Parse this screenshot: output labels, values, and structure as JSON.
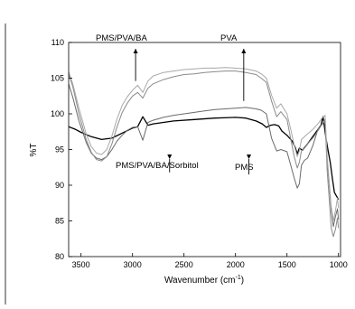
{
  "chart_data": {
    "type": "line",
    "xlabel": "Wavenumber (cm",
    "xlabel_sup": "-1",
    "xlabel_end": ")",
    "ylabel": "%T",
    "xlim": [
      3620,
      980
    ],
    "ylim": [
      80,
      110
    ],
    "x_reversed": true,
    "grid": false,
    "x_ticks": [
      3500,
      3000,
      2500,
      2000,
      1500,
      1000
    ],
    "y_ticks": [
      80,
      85,
      90,
      95,
      100,
      105,
      110
    ],
    "annotations": [
      {
        "text": "PMS/PVA/BA",
        "arrow_x": 2970,
        "arrow_y": 104.6,
        "direction": "up"
      },
      {
        "text": "PVA",
        "arrow_x": 1920,
        "arrow_y": 101.8,
        "direction": "up"
      },
      {
        "text": "PMS/PVA/BA/Sorbitol",
        "arrow_x": 2640,
        "arrow_y": 91.8,
        "direction": "down"
      },
      {
        "text": "PMS",
        "arrow_x": 1870,
        "arrow_y": 91.5,
        "direction": "down"
      }
    ],
    "series": [
      {
        "color": "#000000",
        "x": [
          3620,
          3550,
          3500,
          3400,
          3300,
          3200,
          3100,
          3000,
          2950,
          2900,
          2850,
          2800,
          2600,
          2400,
          2200,
          2000,
          1900,
          1800,
          1740,
          1700,
          1660,
          1620,
          1580,
          1550,
          1500,
          1450,
          1420,
          1400,
          1380,
          1350,
          1300,
          1250,
          1200,
          1170,
          1150,
          1120,
          1100,
          1080,
          1060,
          1040,
          1020,
          1000
        ],
        "y": [
          98.2,
          97.8,
          97.4,
          96.8,
          96.4,
          96.6,
          97.3,
          98.0,
          98.2,
          99.6,
          98.4,
          98.6,
          99.0,
          99.2,
          99.4,
          99.5,
          99.4,
          99.0,
          98.6,
          98.1,
          98.4,
          98.5,
          98.3,
          97.6,
          97.0,
          96.2,
          95.3,
          94.4,
          95.2,
          94.9,
          95.8,
          96.8,
          97.8,
          98.4,
          99.6,
          96.5,
          94.8,
          93.2,
          91.0,
          89.0,
          88.5,
          88.0
        ]
      },
      {
        "color": "#6a6a6a",
        "x": [
          3620,
          3580,
          3520,
          3450,
          3400,
          3350,
          3300,
          3250,
          3200,
          3150,
          3100,
          3050,
          3000,
          2950,
          2900,
          2850,
          2800,
          2700,
          2600,
          2500,
          2400,
          2300,
          2200,
          2100,
          2000,
          1900,
          1800,
          1750,
          1700,
          1650,
          1600,
          1560,
          1500,
          1460,
          1430,
          1400,
          1380,
          1360,
          1330,
          1300,
          1250,
          1200,
          1160,
          1130,
          1110,
          1090,
          1070,
          1050,
          1030,
          1010,
          1000
        ],
        "y": [
          104.2,
          102.3,
          99.0,
          96.0,
          94.5,
          93.8,
          93.6,
          94.0,
          95.0,
          96.2,
          97.0,
          97.7,
          98.1,
          98.2,
          96.3,
          98.8,
          99.1,
          99.5,
          99.8,
          100.0,
          100.2,
          100.4,
          100.6,
          100.7,
          100.8,
          100.9,
          100.7,
          100.5,
          100.0,
          96.6,
          94.8,
          95.0,
          94.7,
          92.6,
          91.0,
          89.6,
          90.2,
          92.8,
          93.5,
          93.8,
          95.5,
          97.8,
          98.5,
          99.0,
          93.5,
          90.0,
          86.5,
          84.2,
          85.6,
          86.7,
          85.2
        ]
      },
      {
        "color": "#8a8a8a",
        "x": [
          3620,
          3580,
          3520,
          3450,
          3400,
          3350,
          3300,
          3250,
          3200,
          3150,
          3100,
          3050,
          3000,
          2950,
          2900,
          2850,
          2800,
          2700,
          2600,
          2500,
          2400,
          2300,
          2200,
          2100,
          2000,
          1900,
          1800,
          1750,
          1700,
          1650,
          1600,
          1560,
          1500,
          1460,
          1430,
          1400,
          1380,
          1360,
          1330,
          1300,
          1250,
          1200,
          1160,
          1130,
          1110,
          1090,
          1070,
          1050,
          1030,
          1010,
          1000
        ],
        "y": [
          105.6,
          103.8,
          100.0,
          96.4,
          94.6,
          93.6,
          93.4,
          94.0,
          95.8,
          98.2,
          100.2,
          101.5,
          102.5,
          103.0,
          102.2,
          103.6,
          104.2,
          104.8,
          105.2,
          105.5,
          105.6,
          105.8,
          105.9,
          106.0,
          106.0,
          105.8,
          105.5,
          105.0,
          104.4,
          101.8,
          99.6,
          100.3,
          99.2,
          96.2,
          94.0,
          92.4,
          93.2,
          94.8,
          95.2,
          95.8,
          96.6,
          97.6,
          98.6,
          99.2,
          92.0,
          88.0,
          84.0,
          82.8,
          83.8,
          85.4,
          84.0
        ]
      },
      {
        "color": "#a8a8a8",
        "x": [
          3620,
          3580,
          3520,
          3450,
          3400,
          3350,
          3300,
          3250,
          3200,
          3150,
          3100,
          3050,
          3000,
          2950,
          2900,
          2850,
          2800,
          2700,
          2600,
          2500,
          2400,
          2300,
          2200,
          2100,
          2000,
          1900,
          1800,
          1750,
          1700,
          1650,
          1600,
          1560,
          1500,
          1460,
          1430,
          1400,
          1380,
          1360,
          1330,
          1300,
          1250,
          1200,
          1160,
          1130,
          1110,
          1090,
          1070,
          1050,
          1030,
          1010,
          1000
        ],
        "y": [
          105.9,
          104.2,
          100.8,
          97.2,
          95.4,
          94.5,
          94.3,
          95.0,
          96.9,
          99.3,
          101.2,
          102.4,
          103.3,
          104.0,
          103.0,
          104.6,
          105.3,
          105.8,
          106.0,
          106.2,
          106.3,
          106.4,
          106.4,
          106.5,
          106.4,
          106.3,
          106.0,
          105.6,
          105.0,
          102.6,
          100.8,
          101.4,
          100.0,
          97.6,
          95.6,
          94.0,
          94.8,
          96.4,
          96.8,
          97.2,
          97.8,
          98.6,
          99.4,
          99.8,
          94.0,
          90.4,
          87.0,
          85.0,
          86.4,
          88.2,
          86.8
        ]
      }
    ]
  }
}
